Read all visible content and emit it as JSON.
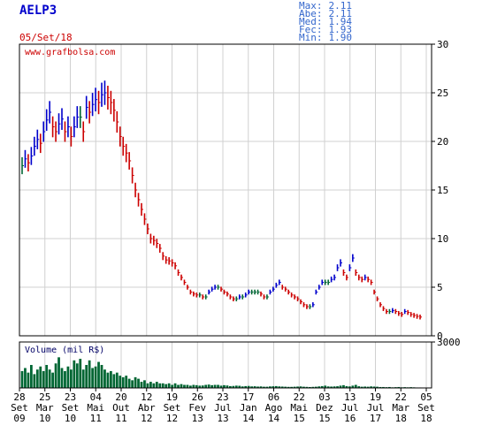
{
  "ticker": "AELP3",
  "date": "05/Set/18",
  "watermark": "www.grafbolsa.com",
  "stats": [
    {
      "label": "Max:",
      "value": "2.11"
    },
    {
      "label": "Abe:",
      "value": "2.11"
    },
    {
      "label": "Med:",
      "value": "1.94"
    },
    {
      "label": "Fec:",
      "value": "1.93"
    },
    {
      "label": "Min:",
      "value": "1.90"
    }
  ],
  "volume_label": "Volume (mil R$)",
  "colors": {
    "ticker": "#0000cc",
    "stats": "#3366cc",
    "date": "#cc0000",
    "price_up": "#0000cc",
    "price_down": "#cc0000",
    "price_flat": "#006633",
    "volume": "#006633",
    "grid": "#d0d0d0"
  },
  "chart_data": {
    "type": "line",
    "price_axis": {
      "ylim": [
        0,
        30
      ],
      "ticks": [
        "0",
        "5",
        "10",
        "15",
        "20",
        "25",
        "30"
      ]
    },
    "volume_axis": {
      "ylim": [
        0,
        3000
      ],
      "ticks": [
        "3000"
      ]
    },
    "x_ticks": [
      {
        "day": "28",
        "month": "Set",
        "year": "09"
      },
      {
        "day": "25",
        "month": "Mar",
        "year": "10"
      },
      {
        "day": "23",
        "month": "Set",
        "year": "10"
      },
      {
        "day": "04",
        "month": "Mai",
        "year": "11"
      },
      {
        "day": "20",
        "month": "Out",
        "year": "11"
      },
      {
        "day": "12",
        "month": "Abr",
        "year": "12"
      },
      {
        "day": "19",
        "month": "Set",
        "year": "12"
      },
      {
        "day": "26",
        "month": "Fev",
        "year": "13"
      },
      {
        "day": "23",
        "month": "Jul",
        "year": "13"
      },
      {
        "day": "17",
        "month": "Jan",
        "year": "14"
      },
      {
        "day": "06",
        "month": "Ago",
        "year": "14"
      },
      {
        "day": "22",
        "month": "Mai",
        "year": "15"
      },
      {
        "day": "03",
        "month": "Dez",
        "year": "15"
      },
      {
        "day": "13",
        "month": "Jul",
        "year": "16"
      },
      {
        "day": "19",
        "month": "Jul",
        "year": "17"
      },
      {
        "day": "22",
        "month": "Mar",
        "year": "18"
      },
      {
        "day": "05",
        "month": "Set",
        "year": "18"
      }
    ],
    "series": [
      {
        "values": [
          17.5,
          18.2,
          17.8,
          18.5,
          19.5,
          20.2,
          19.8,
          21.0,
          22.2,
          23.0,
          21.5,
          21.0,
          21.8,
          22.3,
          21.0,
          21.5,
          20.5,
          21.5,
          22.5,
          22.5,
          21.0,
          23.5,
          23.0,
          23.8,
          24.3,
          24.0,
          24.8,
          25.0,
          24.5,
          24.0,
          23.2,
          22.0,
          20.5,
          19.5,
          18.8,
          18.0,
          16.5,
          15.0,
          14.0,
          13.0,
          12.0,
          11.0,
          10.0,
          9.8,
          9.5,
          9.0,
          8.2,
          7.8,
          7.7,
          7.5,
          7.2,
          6.5,
          6.0,
          5.5,
          5.0,
          4.5,
          4.3,
          4.2,
          4.2,
          4.0,
          4.0,
          4.5,
          4.8,
          5.0,
          5.0,
          4.8,
          4.5,
          4.3,
          4.0,
          3.8,
          3.8,
          4.0,
          4.0,
          4.2,
          4.5,
          4.5,
          4.5,
          4.5,
          4.3,
          4.0,
          4.0,
          4.5,
          4.8,
          5.2,
          5.5,
          5.0,
          4.8,
          4.5,
          4.2,
          4.0,
          3.8,
          3.5,
          3.2,
          3.0,
          3.0,
          3.2,
          4.5,
          5.0,
          5.5,
          5.5,
          5.5,
          5.8,
          6.0,
          7.0,
          7.5,
          6.5,
          6.0,
          7.0,
          8.0,
          6.5,
          6.0,
          5.8,
          6.0,
          5.8,
          5.5,
          4.5,
          3.8,
          3.2,
          2.8,
          2.5,
          2.5,
          2.6,
          2.5,
          2.3,
          2.2,
          2.5,
          2.4,
          2.2,
          2.1,
          2.0,
          1.93
        ],
        "volumes": [
          1100,
          1300,
          1000,
          1500,
          900,
          1200,
          1400,
          1100,
          1500,
          1200,
          1000,
          1600,
          2000,
          1300,
          1100,
          1400,
          1200,
          1800,
          1600,
          1900,
          1200,
          1500,
          1800,
          1300,
          1400,
          1700,
          1500,
          1200,
          1000,
          1100,
          900,
          1000,
          800,
          700,
          800,
          600,
          500,
          700,
          600,
          400,
          500,
          300,
          400,
          300,
          400,
          300,
          300,
          250,
          300,
          200,
          300,
          200,
          250,
          200,
          200,
          150,
          200,
          180,
          150,
          160,
          200,
          220,
          180,
          200,
          200,
          150,
          180,
          160,
          120,
          130,
          150,
          140,
          100,
          120,
          130,
          100,
          110,
          90,
          100,
          80,
          80,
          100,
          110,
          120,
          100,
          90,
          80,
          70,
          70,
          80,
          90,
          100,
          80,
          70,
          60,
          70,
          80,
          100,
          120,
          150,
          100,
          90,
          100,
          110,
          150,
          180,
          120,
          100,
          150,
          200,
          110,
          80,
          90,
          80,
          100,
          90,
          80,
          60,
          60,
          50,
          60,
          40,
          50,
          60,
          40,
          50,
          40,
          50,
          40,
          30,
          30
        ]
      }
    ]
  }
}
